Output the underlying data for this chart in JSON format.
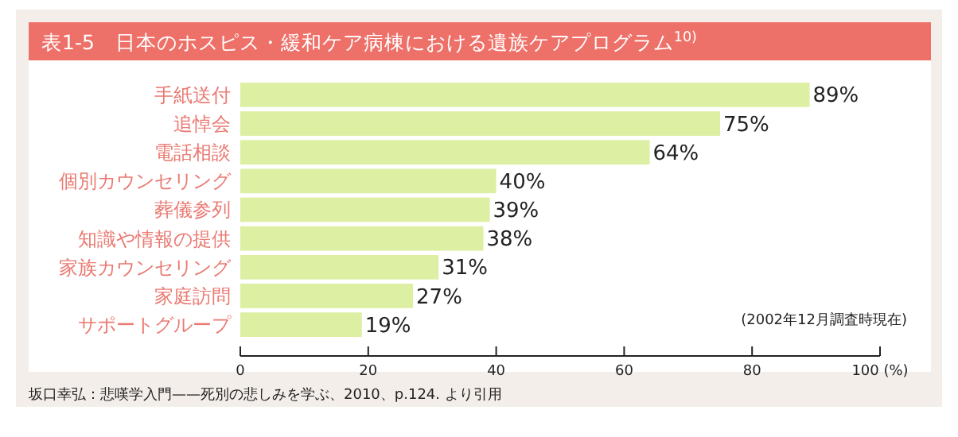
{
  "chart_data": {
    "type": "bar",
    "orientation": "horizontal",
    "title": "表1-5　日本のホスピス・緩和ケア病棟における遺族ケアプログラム$^{10)}$",
    "categories": [
      "手紙送付",
      "追悼会",
      "電話相談",
      "個別カウンセリング",
      "葬儀参列",
      "知識や情報の提供",
      "家族カウンセリング",
      "家庭訪問",
      "サポートグループ"
    ],
    "values": [
      89,
      75,
      64,
      40,
      39,
      38,
      31,
      27,
      19
    ],
    "value_labels": [
      "89%",
      "75%",
      "64%",
      "40%",
      "39%",
      "38%",
      "31%",
      "27%",
      "19%"
    ],
    "color": "#dcefa2",
    "xlim": [
      0,
      100
    ],
    "xticks": [
      0,
      20,
      40,
      60,
      80,
      {
        "value": 100,
        "label": "100 (%)"
      }
    ],
    "grid": false,
    "annotations": [
      "(2002年12月調査時現在)",
      "坂口幸弘：悲嘆学入門——死別の悲しみを学ぶ、2010、p.124.  より引用"
    ]
  }
}
